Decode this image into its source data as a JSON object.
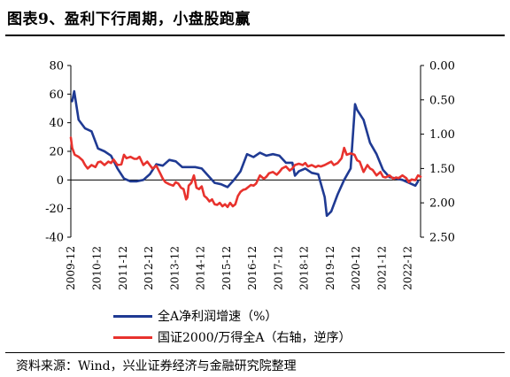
{
  "title": "图表9、盈利下行周期，小盘股跑赢",
  "source": "资料来源：Wind，兴业证券经济与金融研究院整理",
  "colors": {
    "series1": "#1f3a93",
    "series2": "#e8322d"
  },
  "chart_data": {
    "type": "line",
    "title": "图表9、盈利下行周期，小盘股跑赢",
    "y_left": {
      "min": -40,
      "max": 80,
      "ticks": [
        -40,
        -20,
        0,
        20,
        40,
        60,
        80
      ],
      "tick_labels": [
        "-40",
        "-20",
        "0",
        "20",
        "40",
        "60",
        "80"
      ]
    },
    "y_right": {
      "min": 0,
      "max": 2.5,
      "inverted": true,
      "ticks": [
        0,
        0.5,
        1,
        1.5,
        2,
        2.5
      ],
      "tick_labels": [
        "0.00",
        "0.50",
        "1.00",
        "1.50",
        "2.00",
        "2.50"
      ]
    },
    "x_range": [
      2009.95,
      2023.45
    ],
    "x_ticks": [
      "2009-12",
      "2010-12",
      "2011-12",
      "2012-12",
      "2013-12",
      "2014-12",
      "2015-12",
      "2016-12",
      "2017-12",
      "2018-12",
      "2019-12",
      "2020-12",
      "2021-12",
      "2022-12"
    ],
    "legend_position": "bottom",
    "series": [
      {
        "name": "全A净利润增速（%）",
        "axis": "left",
        "color": "#1f3a93",
        "points": [
          [
            2010.0,
            55
          ],
          [
            2010.08,
            62
          ],
          [
            2010.25,
            42
          ],
          [
            2010.5,
            36
          ],
          [
            2010.75,
            34
          ],
          [
            2011.0,
            22
          ],
          [
            2011.25,
            20
          ],
          [
            2011.5,
            17
          ],
          [
            2011.75,
            8
          ],
          [
            2012.0,
            1
          ],
          [
            2012.25,
            -1
          ],
          [
            2012.5,
            -1
          ],
          [
            2012.75,
            0
          ],
          [
            2013.0,
            4
          ],
          [
            2013.25,
            11
          ],
          [
            2013.5,
            10
          ],
          [
            2013.75,
            14
          ],
          [
            2014.0,
            13
          ],
          [
            2014.25,
            9
          ],
          [
            2014.5,
            9
          ],
          [
            2014.75,
            9
          ],
          [
            2015.0,
            8
          ],
          [
            2015.25,
            3
          ],
          [
            2015.5,
            -2
          ],
          [
            2015.75,
            -3
          ],
          [
            2016.0,
            -5
          ],
          [
            2016.25,
            0
          ],
          [
            2016.5,
            6
          ],
          [
            2016.75,
            18
          ],
          [
            2017.0,
            16
          ],
          [
            2017.25,
            19
          ],
          [
            2017.5,
            17
          ],
          [
            2017.75,
            18
          ],
          [
            2018.0,
            17
          ],
          [
            2018.25,
            12
          ],
          [
            2018.5,
            12
          ],
          [
            2018.6,
            3
          ],
          [
            2018.75,
            6
          ],
          [
            2019.0,
            8
          ],
          [
            2019.25,
            5
          ],
          [
            2019.5,
            4
          ],
          [
            2019.75,
            -12
          ],
          [
            2019.83,
            -25
          ],
          [
            2020.0,
            -22
          ],
          [
            2020.25,
            -10
          ],
          [
            2020.5,
            0
          ],
          [
            2020.75,
            8
          ],
          [
            2020.92,
            53
          ],
          [
            2021.0,
            49
          ],
          [
            2021.25,
            42
          ],
          [
            2021.5,
            26
          ],
          [
            2021.75,
            18
          ],
          [
            2022.0,
            7
          ],
          [
            2022.25,
            2
          ],
          [
            2022.5,
            1
          ],
          [
            2022.75,
            0
          ],
          [
            2023.0,
            -2
          ],
          [
            2023.25,
            -4
          ],
          [
            2023.35,
            -1
          ]
        ]
      },
      {
        "name": "国证2000/万得全A（右轴，逆序）",
        "axis": "right",
        "color": "#e8322d",
        "points": [
          [
            2009.95,
            1.05
          ],
          [
            2010.0,
            1.2
          ],
          [
            2010.1,
            1.3
          ],
          [
            2010.25,
            1.33
          ],
          [
            2010.4,
            1.38
          ],
          [
            2010.5,
            1.45
          ],
          [
            2010.6,
            1.5
          ],
          [
            2010.75,
            1.45
          ],
          [
            2010.9,
            1.48
          ],
          [
            2011.0,
            1.41
          ],
          [
            2011.1,
            1.4
          ],
          [
            2011.25,
            1.45
          ],
          [
            2011.4,
            1.4
          ],
          [
            2011.5,
            1.42
          ],
          [
            2011.6,
            1.37
          ],
          [
            2011.75,
            1.45
          ],
          [
            2011.9,
            1.44
          ],
          [
            2012.0,
            1.3
          ],
          [
            2012.1,
            1.35
          ],
          [
            2012.25,
            1.33
          ],
          [
            2012.4,
            1.36
          ],
          [
            2012.5,
            1.36
          ],
          [
            2012.6,
            1.33
          ],
          [
            2012.75,
            1.45
          ],
          [
            2012.9,
            1.4
          ],
          [
            2013.0,
            1.45
          ],
          [
            2013.1,
            1.5
          ],
          [
            2013.25,
            1.46
          ],
          [
            2013.4,
            1.57
          ],
          [
            2013.5,
            1.65
          ],
          [
            2013.6,
            1.7
          ],
          [
            2013.75,
            1.73
          ],
          [
            2013.9,
            1.75
          ],
          [
            2014.0,
            1.7
          ],
          [
            2014.1,
            1.72
          ],
          [
            2014.2,
            1.78
          ],
          [
            2014.3,
            1.8
          ],
          [
            2014.4,
            1.95
          ],
          [
            2014.45,
            1.92
          ],
          [
            2014.5,
            1.75
          ],
          [
            2014.6,
            1.71
          ],
          [
            2014.7,
            1.6
          ],
          [
            2014.8,
            1.78
          ],
          [
            2014.9,
            1.8
          ],
          [
            2015.0,
            1.76
          ],
          [
            2015.1,
            1.9
          ],
          [
            2015.2,
            1.93
          ],
          [
            2015.3,
            1.98
          ],
          [
            2015.4,
            1.95
          ],
          [
            2015.5,
            2.02
          ],
          [
            2015.6,
            2.03
          ],
          [
            2015.7,
            2.0
          ],
          [
            2015.8,
            2.05
          ],
          [
            2015.9,
            2.02
          ],
          [
            2016.0,
            2.06
          ],
          [
            2016.1,
            2.0
          ],
          [
            2016.2,
            2.05
          ],
          [
            2016.3,
            2.02
          ],
          [
            2016.4,
            1.9
          ],
          [
            2016.5,
            1.84
          ],
          [
            2016.6,
            1.81
          ],
          [
            2016.7,
            1.8
          ],
          [
            2016.8,
            1.77
          ],
          [
            2016.9,
            1.74
          ],
          [
            2017.0,
            1.75
          ],
          [
            2017.1,
            1.72
          ],
          [
            2017.25,
            1.6
          ],
          [
            2017.4,
            1.65
          ],
          [
            2017.5,
            1.62
          ],
          [
            2017.6,
            1.57
          ],
          [
            2017.75,
            1.55
          ],
          [
            2017.9,
            1.59
          ],
          [
            2018.0,
            1.55
          ],
          [
            2018.1,
            1.5
          ],
          [
            2018.25,
            1.47
          ],
          [
            2018.4,
            1.53
          ],
          [
            2018.5,
            1.5
          ],
          [
            2018.6,
            1.45
          ],
          [
            2018.75,
            1.43
          ],
          [
            2018.9,
            1.45
          ],
          [
            2019.0,
            1.42
          ],
          [
            2019.1,
            1.47
          ],
          [
            2019.25,
            1.45
          ],
          [
            2019.4,
            1.48
          ],
          [
            2019.5,
            1.46
          ],
          [
            2019.6,
            1.47
          ],
          [
            2019.75,
            1.45
          ],
          [
            2019.9,
            1.42
          ],
          [
            2020.0,
            1.4
          ],
          [
            2020.1,
            1.45
          ],
          [
            2020.25,
            1.42
          ],
          [
            2020.4,
            1.35
          ],
          [
            2020.5,
            1.2
          ],
          [
            2020.6,
            1.3
          ],
          [
            2020.75,
            1.28
          ],
          [
            2020.9,
            1.3
          ],
          [
            2021.0,
            1.38
          ],
          [
            2021.1,
            1.4
          ],
          [
            2021.25,
            1.55
          ],
          [
            2021.4,
            1.45
          ],
          [
            2021.5,
            1.5
          ],
          [
            2021.6,
            1.52
          ],
          [
            2021.75,
            1.6
          ],
          [
            2021.9,
            1.55
          ],
          [
            2022.0,
            1.62
          ],
          [
            2022.1,
            1.63
          ],
          [
            2022.25,
            1.6
          ],
          [
            2022.4,
            1.65
          ],
          [
            2022.5,
            1.63
          ],
          [
            2022.6,
            1.64
          ],
          [
            2022.75,
            1.6
          ],
          [
            2022.9,
            1.64
          ],
          [
            2023.0,
            1.7
          ],
          [
            2023.1,
            1.66
          ],
          [
            2023.25,
            1.67
          ],
          [
            2023.35,
            1.6
          ],
          [
            2023.45,
            1.62
          ]
        ]
      }
    ]
  }
}
